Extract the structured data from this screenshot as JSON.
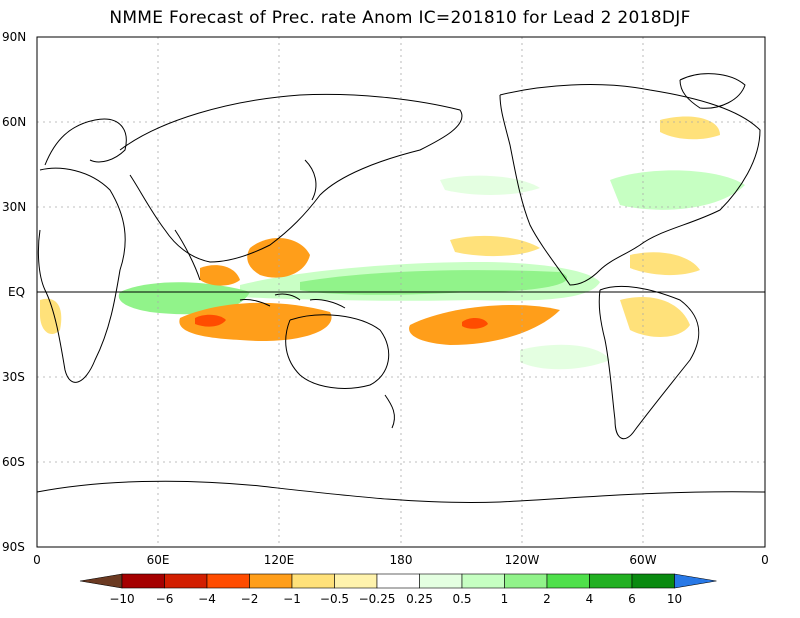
{
  "title": "NMME Forecast of Prec. rate Anom IC=201810 for Lead 2 2018DJF",
  "axes": {
    "lat_labels": [
      "90N",
      "60N",
      "30N",
      "EQ",
      "30S",
      "60S",
      "90S"
    ],
    "lon_labels": [
      "0",
      "60E",
      "120E",
      "180",
      "120W",
      "60W",
      "0"
    ]
  },
  "colorbar": {
    "labels": [
      "-10",
      "-6",
      "-4",
      "-2",
      "-1",
      "-0.5",
      "-0.25",
      "0.25",
      "0.5",
      "1",
      "2",
      "4",
      "6",
      "10"
    ],
    "colors": [
      "#6b3a22",
      "#a50000",
      "#d21e00",
      "#ff4c00",
      "#ff9e1a",
      "#ffe17a",
      "#fff3ad",
      "#ffffff",
      "#e4ffe1",
      "#c6ffc2",
      "#91f38a",
      "#4fe04b",
      "#22b022",
      "#0a8a10",
      "#2878e6"
    ]
  },
  "chart_data": {
    "type": "heatmap",
    "title": "NMME Forecast of Prec. rate Anom IC=201810 for Lead 2 2018DJF",
    "xlabel": "",
    "ylabel": "",
    "x_range": [
      "0",
      "0"
    ],
    "y_range": [
      "90S",
      "90N"
    ],
    "color_levels": [
      -10,
      -6,
      -4,
      -2,
      -1,
      -0.5,
      -0.25,
      0.25,
      0.5,
      1,
      2,
      4,
      6,
      10
    ],
    "grid": true
  }
}
